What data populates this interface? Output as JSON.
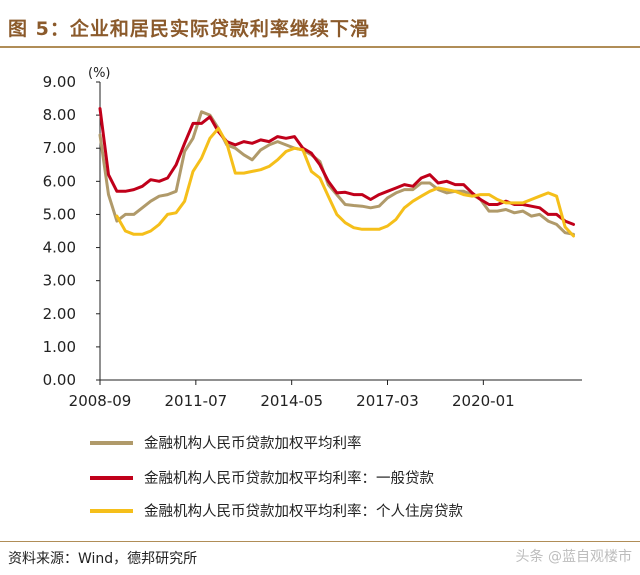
{
  "figure": {
    "title": "图 5：企业和居民实际贷款利率继续下滑",
    "source": "资料来源：Wind，德邦研究所",
    "watermark": "头条 @蓝自观楼市"
  },
  "chart_data": {
    "type": "line",
    "unit_label": "(%)",
    "ylim": [
      0,
      9
    ],
    "yticks": [
      "9.00",
      "8.00",
      "7.00",
      "6.00",
      "5.00",
      "4.00",
      "3.00",
      "2.00",
      "1.00",
      "0.00"
    ],
    "xlim": [
      "2008-09",
      "2022-12"
    ],
    "xticks": [
      "2008-09",
      "2011-07",
      "2014-05",
      "2017-03",
      "2020-01"
    ],
    "grid": false,
    "legend_position": "bottom",
    "series": [
      {
        "name": "金融机构人民币贷款加权平均利率",
        "color": "#b09a6a",
        "points": [
          [
            "2008-09",
            7.4
          ],
          [
            "2008-12",
            5.6
          ],
          [
            "2009-03",
            4.8
          ],
          [
            "2009-06",
            5.0
          ],
          [
            "2009-09",
            5.0
          ],
          [
            "2009-12",
            5.2
          ],
          [
            "2010-03",
            5.4
          ],
          [
            "2010-06",
            5.55
          ],
          [
            "2010-09",
            5.6
          ],
          [
            "2010-12",
            5.7
          ],
          [
            "2011-03",
            6.9
          ],
          [
            "2011-06",
            7.3
          ],
          [
            "2011-09",
            8.1
          ],
          [
            "2011-12",
            8.0
          ],
          [
            "2012-03",
            7.6
          ],
          [
            "2012-06",
            7.1
          ],
          [
            "2012-09",
            7.0
          ],
          [
            "2012-12",
            6.8
          ],
          [
            "2013-03",
            6.65
          ],
          [
            "2013-06",
            6.95
          ],
          [
            "2013-09",
            7.1
          ],
          [
            "2013-12",
            7.2
          ],
          [
            "2014-03",
            7.1
          ],
          [
            "2014-06",
            7.0
          ],
          [
            "2014-09",
            6.95
          ],
          [
            "2014-12",
            6.8
          ],
          [
            "2015-03",
            6.6
          ],
          [
            "2015-06",
            5.9
          ],
          [
            "2015-09",
            5.6
          ],
          [
            "2015-12",
            5.3
          ],
          [
            "2016-03",
            5.27
          ],
          [
            "2016-06",
            5.25
          ],
          [
            "2016-09",
            5.2
          ],
          [
            "2016-12",
            5.25
          ],
          [
            "2017-03",
            5.5
          ],
          [
            "2017-06",
            5.65
          ],
          [
            "2017-09",
            5.75
          ],
          [
            "2017-12",
            5.75
          ],
          [
            "2018-03",
            5.95
          ],
          [
            "2018-06",
            5.95
          ],
          [
            "2018-09",
            5.75
          ],
          [
            "2018-12",
            5.65
          ],
          [
            "2019-03",
            5.7
          ],
          [
            "2019-06",
            5.7
          ],
          [
            "2019-09",
            5.6
          ],
          [
            "2019-12",
            5.45
          ],
          [
            "2020-03",
            5.1
          ],
          [
            "2020-06",
            5.1
          ],
          [
            "2020-09",
            5.15
          ],
          [
            "2020-12",
            5.05
          ],
          [
            "2021-03",
            5.1
          ],
          [
            "2021-06",
            4.95
          ],
          [
            "2021-09",
            5.0
          ],
          [
            "2021-12",
            4.8
          ],
          [
            "2022-03",
            4.7
          ],
          [
            "2022-06",
            4.45
          ],
          [
            "2022-09",
            4.4
          ]
        ]
      },
      {
        "name": "金融机构人民币贷款加权平均利率：一般贷款",
        "color": "#c0001a",
        "points": [
          [
            "2008-09",
            8.2
          ],
          [
            "2008-12",
            6.2
          ],
          [
            "2009-03",
            5.7
          ],
          [
            "2009-06",
            5.7
          ],
          [
            "2009-09",
            5.75
          ],
          [
            "2009-12",
            5.85
          ],
          [
            "2010-03",
            6.05
          ],
          [
            "2010-06",
            6.0
          ],
          [
            "2010-09",
            6.1
          ],
          [
            "2010-12",
            6.5
          ],
          [
            "2011-03",
            7.15
          ],
          [
            "2011-06",
            7.75
          ],
          [
            "2011-09",
            7.75
          ],
          [
            "2011-12",
            7.95
          ],
          [
            "2012-03",
            7.5
          ],
          [
            "2012-06",
            7.2
          ],
          [
            "2012-09",
            7.1
          ],
          [
            "2012-12",
            7.2
          ],
          [
            "2013-03",
            7.15
          ],
          [
            "2013-06",
            7.25
          ],
          [
            "2013-09",
            7.2
          ],
          [
            "2013-12",
            7.35
          ],
          [
            "2014-03",
            7.3
          ],
          [
            "2014-06",
            7.35
          ],
          [
            "2014-09",
            7.0
          ],
          [
            "2014-12",
            6.85
          ],
          [
            "2015-03",
            6.5
          ],
          [
            "2015-06",
            6.0
          ],
          [
            "2015-09",
            5.65
          ],
          [
            "2015-12",
            5.67
          ],
          [
            "2016-03",
            5.6
          ],
          [
            "2016-06",
            5.6
          ],
          [
            "2016-09",
            5.45
          ],
          [
            "2016-12",
            5.6
          ],
          [
            "2017-03",
            5.7
          ],
          [
            "2017-06",
            5.8
          ],
          [
            "2017-09",
            5.9
          ],
          [
            "2017-12",
            5.85
          ],
          [
            "2018-03",
            6.1
          ],
          [
            "2018-06",
            6.2
          ],
          [
            "2018-09",
            5.95
          ],
          [
            "2018-12",
            6.0
          ],
          [
            "2019-03",
            5.9
          ],
          [
            "2019-06",
            5.9
          ],
          [
            "2019-09",
            5.65
          ],
          [
            "2019-12",
            5.45
          ],
          [
            "2020-03",
            5.3
          ],
          [
            "2020-06",
            5.3
          ],
          [
            "2020-09",
            5.4
          ],
          [
            "2020-12",
            5.3
          ],
          [
            "2021-03",
            5.3
          ],
          [
            "2021-06",
            5.25
          ],
          [
            "2021-09",
            5.2
          ],
          [
            "2021-12",
            5.0
          ],
          [
            "2022-03",
            5.0
          ],
          [
            "2022-06",
            4.8
          ],
          [
            "2022-09",
            4.7
          ]
        ]
      },
      {
        "name": "金融机构人民币贷款加权平均利率：个人住房贷款",
        "color": "#f5bf1a",
        "points": [
          [
            "2009-03",
            4.95
          ],
          [
            "2009-06",
            4.5
          ],
          [
            "2009-09",
            4.4
          ],
          [
            "2009-12",
            4.4
          ],
          [
            "2010-03",
            4.5
          ],
          [
            "2010-06",
            4.7
          ],
          [
            "2010-09",
            5.0
          ],
          [
            "2010-12",
            5.05
          ],
          [
            "2011-03",
            5.4
          ],
          [
            "2011-06",
            6.3
          ],
          [
            "2011-09",
            6.7
          ],
          [
            "2011-12",
            7.3
          ],
          [
            "2012-03",
            7.6
          ],
          [
            "2012-06",
            7.15
          ],
          [
            "2012-09",
            6.25
          ],
          [
            "2012-12",
            6.25
          ],
          [
            "2013-03",
            6.3
          ],
          [
            "2013-06",
            6.35
          ],
          [
            "2013-09",
            6.45
          ],
          [
            "2013-12",
            6.65
          ],
          [
            "2014-03",
            6.9
          ],
          [
            "2014-06",
            7.0
          ],
          [
            "2014-09",
            6.95
          ],
          [
            "2014-12",
            6.3
          ],
          [
            "2015-03",
            6.1
          ],
          [
            "2015-06",
            5.55
          ],
          [
            "2015-09",
            5.0
          ],
          [
            "2015-12",
            4.75
          ],
          [
            "2016-03",
            4.6
          ],
          [
            "2016-06",
            4.55
          ],
          [
            "2016-09",
            4.55
          ],
          [
            "2016-12",
            4.55
          ],
          [
            "2017-03",
            4.65
          ],
          [
            "2017-06",
            4.85
          ],
          [
            "2017-09",
            5.2
          ],
          [
            "2017-12",
            5.4
          ],
          [
            "2018-03",
            5.55
          ],
          [
            "2018-06",
            5.7
          ],
          [
            "2018-09",
            5.8
          ],
          [
            "2018-12",
            5.75
          ],
          [
            "2019-03",
            5.7
          ],
          [
            "2019-06",
            5.6
          ],
          [
            "2019-09",
            5.55
          ],
          [
            "2019-12",
            5.6
          ],
          [
            "2020-03",
            5.6
          ],
          [
            "2020-06",
            5.45
          ],
          [
            "2020-09",
            5.35
          ],
          [
            "2020-12",
            5.35
          ],
          [
            "2021-03",
            5.35
          ],
          [
            "2021-06",
            5.45
          ],
          [
            "2021-09",
            5.55
          ],
          [
            "2021-12",
            5.65
          ],
          [
            "2022-03",
            5.55
          ],
          [
            "2022-06",
            4.62
          ],
          [
            "2022-09",
            4.35
          ]
        ]
      }
    ]
  }
}
